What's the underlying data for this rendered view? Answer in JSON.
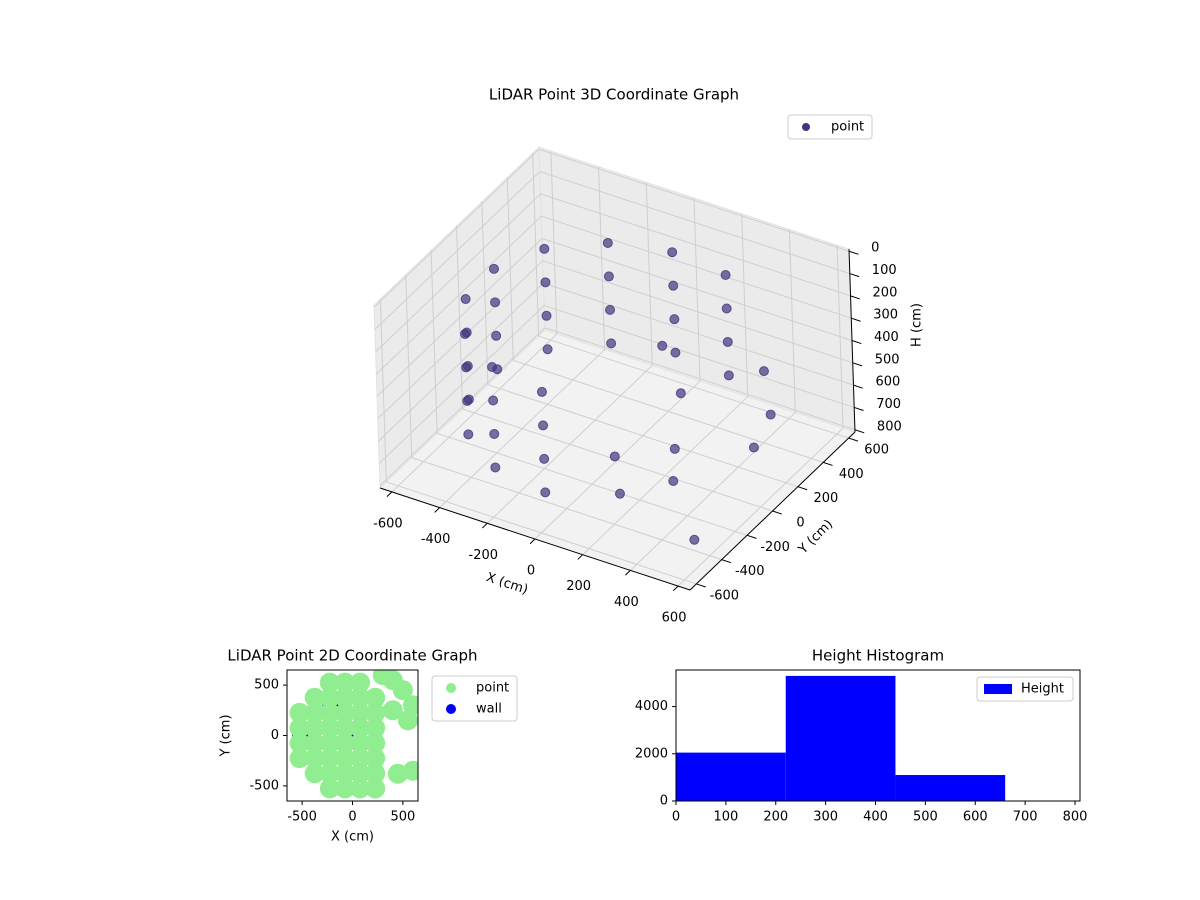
{
  "chart_data": [
    {
      "type": "scatter3d",
      "title": "LiDAR Point 3D Coordinate Graph",
      "xlabel": "X (cm)",
      "ylabel": "Y (cm)",
      "zlabel": "H (cm)",
      "xlim": [
        -650,
        650
      ],
      "ylim": [
        -650,
        650
      ],
      "zlim": [
        810,
        -10
      ],
      "xticks": [
        -600,
        -400,
        -200,
        0,
        200,
        400,
        600
      ],
      "yticks": [
        -600,
        -400,
        -200,
        0,
        200,
        400,
        600
      ],
      "zticks": [
        0,
        100,
        200,
        300,
        400,
        500,
        600,
        700,
        800
      ],
      "grid": true,
      "legend": "upper right",
      "series": [
        {
          "name": "point",
          "color": "#46337e",
          "x": [
            192,
            -49,
            -280,
            -459,
            -551,
            -541,
            -429,
            -237,
            0,
            192,
            -49,
            -280,
            -459,
            -551,
            -541,
            -429,
            -237,
            0,
            192,
            -49,
            -280,
            -459,
            -551,
            -541,
            -429,
            -237,
            0,
            192,
            -49,
            -280,
            -459,
            -551,
            -541,
            -429,
            -237,
            0,
            150,
            250,
            300,
            100,
            550,
            600,
            580,
            400,
            200,
            620
          ],
          "y": [
            526,
            558,
            485,
            321,
            97,
            -145,
            -360,
            -508,
            -560,
            526,
            558,
            485,
            321,
            97,
            -145,
            -360,
            -508,
            -560,
            526,
            558,
            485,
            321,
            97,
            -145,
            -360,
            -508,
            -560,
            526,
            558,
            485,
            321,
            97,
            -145,
            -360,
            -508,
            -560,
            100,
            50,
            -100,
            -200,
            150,
            100,
            0,
            -300,
            -350,
            -550
          ],
          "z": [
            200,
            200,
            200,
            200,
            200,
            200,
            200,
            200,
            200,
            350,
            350,
            350,
            350,
            350,
            350,
            350,
            350,
            350,
            500,
            500,
            500,
            500,
            500,
            500,
            500,
            500,
            500,
            650,
            650,
            650,
            650,
            650,
            650,
            650,
            650,
            650,
            300,
            450,
            600,
            650,
            300,
            450,
            550,
            600,
            700,
            650
          ]
        }
      ]
    },
    {
      "type": "scatter",
      "title": "LiDAR Point 2D Coordinate Graph",
      "xlabel": "X (cm)",
      "ylabel": "Y (cm)",
      "xlim": [
        -650,
        650
      ],
      "ylim": [
        -650,
        650
      ],
      "xticks": [
        -500,
        0,
        500
      ],
      "yticks": [
        -500,
        0,
        500
      ],
      "legend": "outside right",
      "series": [
        {
          "name": "point",
          "color": "#90ee90",
          "x": [
            -525,
            -525,
            -525,
            -525,
            -375,
            -375,
            -375,
            -375,
            -375,
            -375,
            -225,
            -225,
            -225,
            -225,
            -225,
            -225,
            -225,
            -225,
            -75,
            -75,
            -75,
            -75,
            -75,
            -75,
            -75,
            -75,
            75,
            75,
            75,
            75,
            75,
            75,
            75,
            75,
            225,
            225,
            225,
            225,
            225,
            225,
            225,
            400,
            500,
            600,
            550,
            450,
            600,
            300,
            400
          ],
          "y": [
            -225,
            -75,
            75,
            225,
            -375,
            -225,
            -75,
            75,
            225,
            375,
            -525,
            -375,
            -225,
            -75,
            75,
            225,
            375,
            525,
            -525,
            -375,
            -225,
            -75,
            75,
            225,
            375,
            525,
            -525,
            -375,
            -225,
            -75,
            75,
            225,
            375,
            525,
            -525,
            -375,
            -225,
            -75,
            75,
            225,
            375,
            550,
            450,
            300,
            150,
            -380,
            -350,
            600,
            250
          ]
        },
        {
          "name": "wall",
          "color": "#0000ff",
          "x": [
            -500,
            0,
            -200
          ],
          "y": [
            0,
            0,
            300
          ]
        }
      ]
    },
    {
      "type": "histogram",
      "title": "Height Histogram",
      "label": "Height",
      "color": "#0000ff",
      "bins": [
        0,
        220,
        440,
        660
      ],
      "values": [
        2050,
        5300,
        1100
      ],
      "xlim": [
        0,
        810
      ],
      "ylim": [
        0,
        5550
      ],
      "xticks": [
        0,
        100,
        200,
        300,
        400,
        500,
        600,
        700,
        800
      ],
      "yticks": [
        0,
        2000,
        4000
      ],
      "legend": "upper right"
    }
  ]
}
